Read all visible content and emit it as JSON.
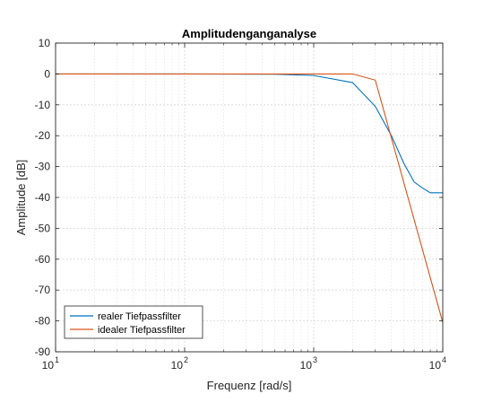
{
  "chart_data": {
    "type": "line",
    "title": "Amplitudenganganalyse",
    "xlabel": "Frequenz [rad/s]",
    "ylabel": "Amplitude [dB]",
    "xscale": "log",
    "xlim": [
      10,
      10000
    ],
    "ylim": [
      -90,
      10
    ],
    "xticks": [
      {
        "value": 10,
        "base": "10",
        "exp": "1"
      },
      {
        "value": 100,
        "base": "10",
        "exp": "2"
      },
      {
        "value": 1000,
        "base": "10",
        "exp": "3"
      },
      {
        "value": 10000,
        "base": "10",
        "exp": "4"
      }
    ],
    "yticks": [
      10,
      0,
      -10,
      -20,
      -30,
      -40,
      -50,
      -60,
      -70,
      -80,
      -90
    ],
    "grid": true,
    "minor_grid": true,
    "legend_position": "bottom-left",
    "series": [
      {
        "name": "realer Tiefpassfilter",
        "color": "#0072BD",
        "x": [
          10,
          100,
          500,
          1000,
          2000,
          3000,
          4000,
          5000,
          6000,
          7000,
          8000,
          9000,
          10000
        ],
        "y": [
          0,
          0,
          -0.1,
          -0.5,
          -2.8,
          -10.5,
          -20,
          -29,
          -35,
          -37,
          -38.5,
          -38.5,
          -38.5
        ]
      },
      {
        "name": "idealer Tiefpassfilter",
        "color": "#D95319",
        "x": [
          10,
          100,
          1000,
          2000,
          3000,
          10000
        ],
        "y": [
          0,
          0,
          0,
          0,
          -2,
          -80.5
        ]
      }
    ]
  }
}
